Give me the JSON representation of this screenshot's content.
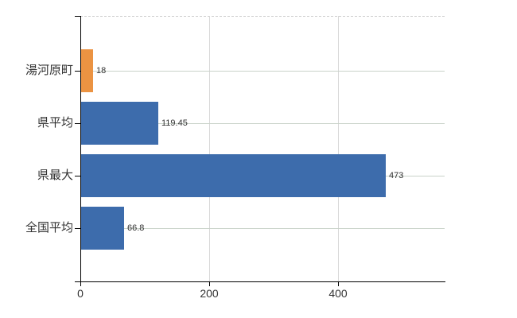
{
  "chart_data": {
    "type": "bar",
    "orientation": "horizontal",
    "title": "",
    "xlabel": "",
    "ylabel": "",
    "categories": [
      "湯河原町",
      "県平均",
      "県最大",
      "全国平均"
    ],
    "values": [
      18,
      119.45,
      473,
      66.8
    ],
    "value_labels": [
      "18",
      "119.45",
      "473",
      "66.8"
    ],
    "bar_colors": [
      "#EB9342",
      "#3D6CAC",
      "#3D6CAC",
      "#3D6CAC"
    ],
    "xticks": [
      0,
      200,
      400
    ],
    "xtick_labels": [
      "0",
      "200",
      "400"
    ],
    "xlim": [
      0,
      566
    ],
    "grid": true,
    "legend": false
  },
  "colors": {
    "highlight_bar": "#EB9342",
    "default_bar": "#3D6CAC",
    "horizontal_gridline": "#C9D2C9",
    "vertical_gridline": "#D8D8D8",
    "plot_border_dash": "#CCCCCC",
    "axis": "#000000",
    "text": "#333333",
    "background": "#FFFFFF"
  }
}
